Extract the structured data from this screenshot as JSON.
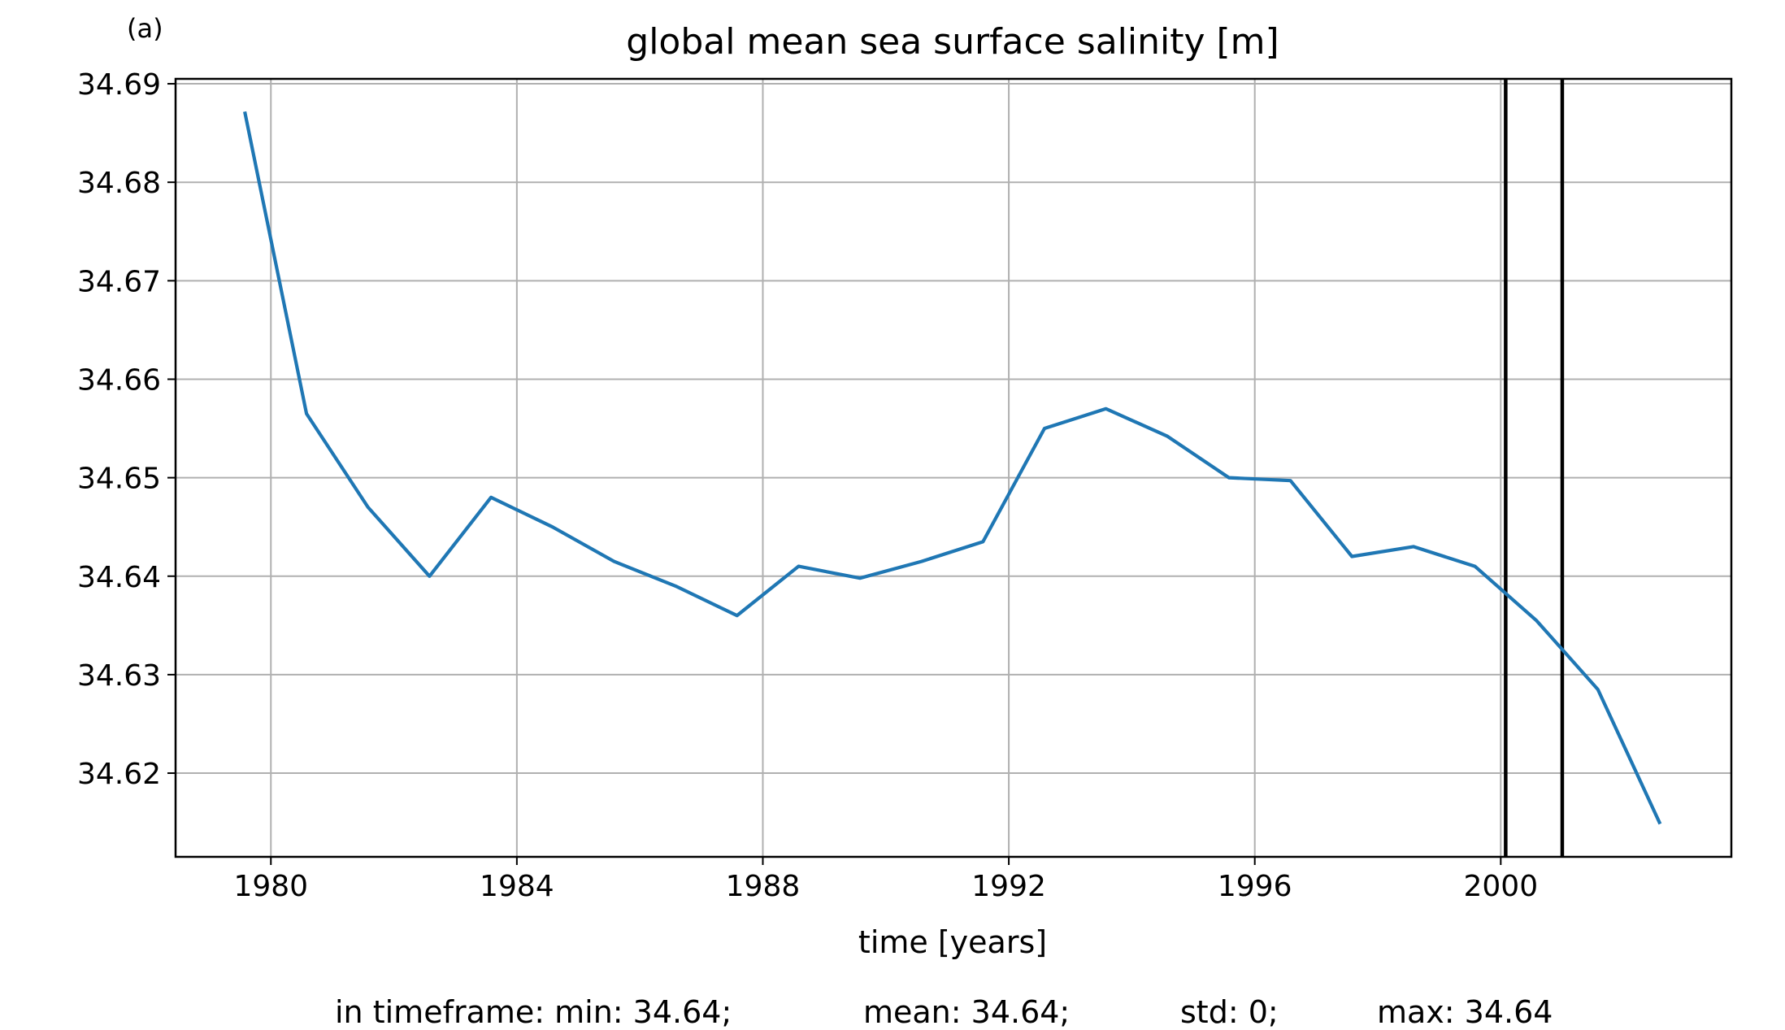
{
  "chart_data": {
    "type": "line",
    "panel_label": "(a)",
    "title": "global mean sea surface salinity [m]",
    "xlabel": "time [years]",
    "ylabel": "",
    "xlim": [
      1978.45,
      2003.75
    ],
    "ylim": [
      34.6115,
      34.6905
    ],
    "xticks": [
      1980,
      1984,
      1988,
      1992,
      1996,
      2000
    ],
    "xtick_labels": [
      "1980",
      "1984",
      "1988",
      "1992",
      "1996",
      "2000"
    ],
    "yticks": [
      34.62,
      34.63,
      34.64,
      34.65,
      34.66,
      34.67,
      34.68,
      34.69
    ],
    "ytick_labels": [
      "34.62",
      "34.63",
      "34.64",
      "34.65",
      "34.66",
      "34.67",
      "34.68",
      "34.69"
    ],
    "grid": true,
    "series": [
      {
        "color": "#1f77b4",
        "x": [
          1979.58,
          1980.58,
          1981.58,
          1982.58,
          1983.58,
          1984.58,
          1985.58,
          1986.58,
          1987.58,
          1988.58,
          1989.58,
          1990.58,
          1991.58,
          1992.58,
          1993.58,
          1994.58,
          1995.58,
          1996.58,
          1997.58,
          1998.58,
          1999.58,
          2000.58,
          2001.58,
          2002.58
        ],
        "y": [
          34.687,
          34.6565,
          34.647,
          34.64,
          34.648,
          34.645,
          34.6415,
          34.639,
          34.636,
          34.641,
          34.6398,
          34.6415,
          34.6435,
          34.655,
          34.657,
          34.6542,
          34.65,
          34.6497,
          34.642,
          34.643,
          34.641,
          34.6355,
          34.6285,
          34.615
        ]
      }
    ],
    "vertical_lines": [
      {
        "x": 2000.08,
        "color": "#000000"
      },
      {
        "x": 2001.0,
        "color": "#000000"
      }
    ],
    "footer": {
      "prefix": "in timeframe: min: 34.64;",
      "mean": "mean: 34.64;",
      "std": "std: 0;",
      "max": "max: 34.64"
    }
  }
}
